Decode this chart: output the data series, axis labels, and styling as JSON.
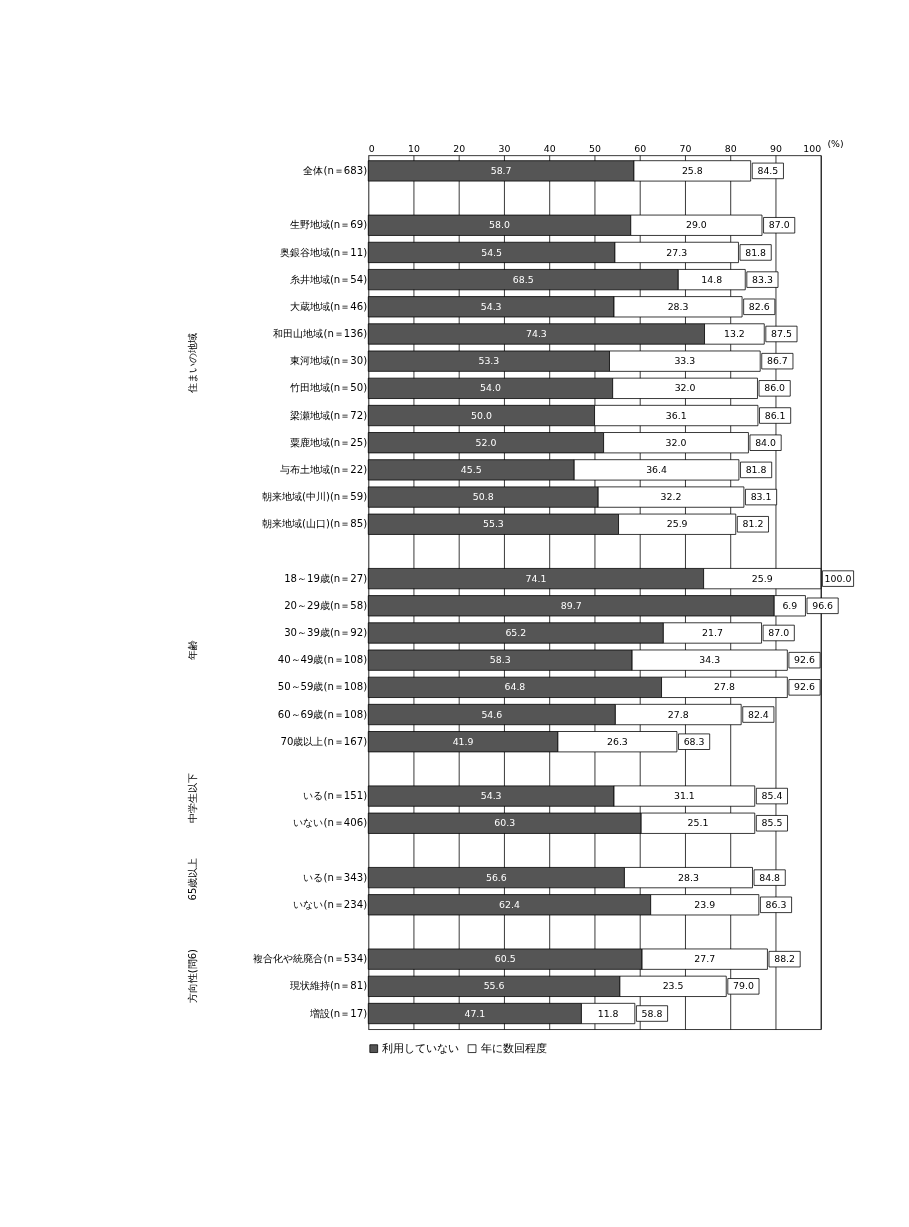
{
  "chart_data": {
    "type": "bar",
    "orientation": "horizontal",
    "stacked": true,
    "categories": [
      "全体(n＝683)",
      null,
      "生野地域(n＝69)",
      "奥銀谷地域(n＝11)",
      "糸井地域(n＝54)",
      "大蔵地域(n＝46)",
      "和田山地域(n＝136)",
      "東河地域(n＝30)",
      "竹田地域(n＝50)",
      "梁瀬地域(n＝72)",
      "粟鹿地域(n＝25)",
      "与布土地域(n＝22)",
      "朝来地域(中川)(n＝59)",
      "朝来地域(山口)(n＝85)",
      null,
      "18～19歳(n＝27)",
      "20～29歳(n＝58)",
      "30～39歳(n＝92)",
      "40～49歳(n＝108)",
      "50～59歳(n＝108)",
      "60～69歳(n＝108)",
      "70歳以上(n＝167)",
      null,
      "いる(n＝151)",
      "いない(n＝406)",
      null,
      "いる(n＝343)",
      "いない(n＝234)",
      null,
      "複合化や統廃合(n＝534)",
      "現状維持(n＝81)",
      "増設(n＝17)"
    ],
    "series": [
      {
        "name": "利用していない",
        "color": "#555555",
        "values": [
          58.7,
          null,
          58.0,
          54.5,
          68.5,
          54.3,
          74.3,
          53.3,
          54.0,
          50.0,
          52.0,
          45.5,
          50.8,
          55.3,
          null,
          74.1,
          89.7,
          65.2,
          58.3,
          64.8,
          54.6,
          41.9,
          null,
          54.3,
          60.3,
          null,
          56.6,
          62.4,
          null,
          60.5,
          55.6,
          47.1
        ],
        "value_labels": [
          "58.7",
          null,
          "58.0",
          "54.5",
          "68.5",
          "54.3",
          "74.3",
          "53.3",
          "54.0",
          "50.0",
          "52.0",
          "45.5",
          "50.8",
          "55.3",
          null,
          "74.1",
          "89.7",
          "65.2",
          "58.3",
          "64.8",
          "54.6",
          "41.9",
          null,
          "54.3",
          "60.3",
          null,
          "56.6",
          "62.4",
          null,
          "60.5",
          "55.6",
          "47.1"
        ]
      },
      {
        "name": "年に数回程度",
        "color": "#ffffff",
        "values": [
          25.8,
          null,
          29.0,
          27.3,
          14.8,
          28.3,
          13.2,
          33.3,
          32.0,
          36.1,
          32.0,
          36.4,
          32.2,
          25.9,
          null,
          25.9,
          6.9,
          21.7,
          34.3,
          27.8,
          27.8,
          26.3,
          null,
          31.1,
          25.1,
          null,
          28.3,
          23.9,
          null,
          27.7,
          23.5,
          11.8
        ],
        "value_labels": [
          "25.8",
          null,
          "29.0",
          "27.3",
          "14.8",
          "28.3",
          "13.2",
          "33.3",
          "32.0",
          "36.1",
          "32.0",
          "36.4",
          "32.2",
          "25.9",
          null,
          "25.9",
          "6.9",
          "21.7",
          "34.3",
          "27.8",
          "27.8",
          "26.3",
          null,
          "31.1",
          "25.1",
          null,
          "28.3",
          "23.9",
          null,
          "27.7",
          "23.5",
          "11.8"
        ]
      }
    ],
    "totals": [
      "84.5",
      null,
      "87.0",
      "81.8",
      "83.3",
      "82.6",
      "87.5",
      "86.7",
      "86.0",
      "86.1",
      "84.0",
      "81.8",
      "83.1",
      "81.2",
      null,
      "100.0",
      "96.6",
      "87.0",
      "92.6",
      "92.6",
      "82.4",
      "68.3",
      null,
      "85.4",
      "85.5",
      null,
      "84.8",
      "86.3",
      null,
      "88.2",
      "79.0",
      "58.8"
    ],
    "xlim": [
      0,
      100
    ],
    "xticks": [
      0,
      10,
      20,
      30,
      40,
      50,
      60,
      70,
      80,
      90,
      100
    ],
    "xlabel": "(%)",
    "grid": "x",
    "legend": "bottom",
    "annotations": [
      "住まいの地域",
      "年齢",
      "中学生以下",
      "65歳以上",
      "方向性(問6)"
    ]
  }
}
